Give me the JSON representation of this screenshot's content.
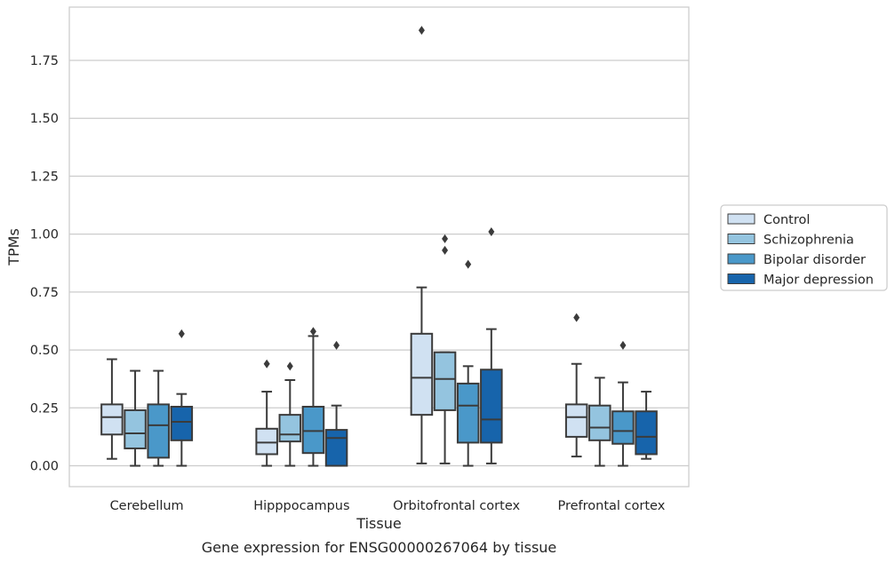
{
  "chart_data": {
    "type": "box",
    "xlabel": "Tissue",
    "ylabel": "TPMs",
    "caption": "Gene expression for ENSG00000267064 by tissue",
    "ylim": [
      -0.09,
      1.98
    ],
    "yticks": [
      "0.00",
      "0.25",
      "0.50",
      "0.75",
      "1.00",
      "1.25",
      "1.50",
      "1.75"
    ],
    "yticks_values": [
      0,
      0.25,
      0.5,
      0.75,
      1.0,
      1.25,
      1.5,
      1.75
    ],
    "grid": true,
    "legend_position": "right",
    "categories": [
      "Cerebellum",
      "Hipppocampus",
      "Orbitofrontal cortex",
      "Prefrontal cortex"
    ],
    "series": [
      {
        "name": "Control",
        "color": "#d0e1f2",
        "boxes": [
          {
            "whislo": 0.03,
            "q1": 0.135,
            "med": 0.21,
            "q3": 0.265,
            "whishi": 0.46,
            "fliers": []
          },
          {
            "whislo": 0.0,
            "q1": 0.05,
            "med": 0.1,
            "q3": 0.16,
            "whishi": 0.32,
            "fliers": [
              0.44
            ]
          },
          {
            "whislo": 0.01,
            "q1": 0.22,
            "med": 0.38,
            "q3": 0.57,
            "whishi": 0.77,
            "fliers": [
              1.88
            ]
          },
          {
            "whislo": 0.04,
            "q1": 0.125,
            "med": 0.21,
            "q3": 0.265,
            "whishi": 0.44,
            "fliers": [
              0.64
            ]
          }
        ]
      },
      {
        "name": "Schizophrenia",
        "color": "#94c4df",
        "boxes": [
          {
            "whislo": 0.0,
            "q1": 0.075,
            "med": 0.14,
            "q3": 0.24,
            "whishi": 0.41,
            "fliers": []
          },
          {
            "whislo": 0.0,
            "q1": 0.105,
            "med": 0.135,
            "q3": 0.22,
            "whishi": 0.37,
            "fliers": [
              0.43
            ]
          },
          {
            "whislo": 0.01,
            "q1": 0.24,
            "med": 0.375,
            "q3": 0.49,
            "whishi": 0.49,
            "fliers": [
              0.93,
              0.98
            ]
          },
          {
            "whislo": 0.0,
            "q1": 0.11,
            "med": 0.165,
            "q3": 0.26,
            "whishi": 0.38,
            "fliers": []
          }
        ]
      },
      {
        "name": "Bipolar disorder",
        "color": "#4a98c9",
        "boxes": [
          {
            "whislo": 0.0,
            "q1": 0.035,
            "med": 0.175,
            "q3": 0.265,
            "whishi": 0.41,
            "fliers": []
          },
          {
            "whislo": 0.0,
            "q1": 0.055,
            "med": 0.15,
            "q3": 0.255,
            "whishi": 0.56,
            "fliers": [
              0.58
            ]
          },
          {
            "whislo": 0.0,
            "q1": 0.1,
            "med": 0.26,
            "q3": 0.355,
            "whishi": 0.43,
            "fliers": [
              0.87
            ]
          },
          {
            "whislo": 0.0,
            "q1": 0.095,
            "med": 0.15,
            "q3": 0.235,
            "whishi": 0.36,
            "fliers": [
              0.52
            ]
          }
        ]
      },
      {
        "name": "Major depression",
        "color": "#1764ab",
        "boxes": [
          {
            "whislo": 0.0,
            "q1": 0.11,
            "med": 0.19,
            "q3": 0.255,
            "whishi": 0.31,
            "fliers": [
              0.57
            ]
          },
          {
            "whislo": 0.0,
            "q1": 0.0,
            "med": 0.12,
            "q3": 0.155,
            "whishi": 0.26,
            "fliers": [
              0.52
            ]
          },
          {
            "whislo": 0.01,
            "q1": 0.1,
            "med": 0.2,
            "q3": 0.415,
            "whishi": 0.59,
            "fliers": [
              1.01
            ]
          },
          {
            "whislo": 0.03,
            "q1": 0.05,
            "med": 0.125,
            "q3": 0.235,
            "whishi": 0.32,
            "fliers": []
          }
        ]
      }
    ]
  }
}
